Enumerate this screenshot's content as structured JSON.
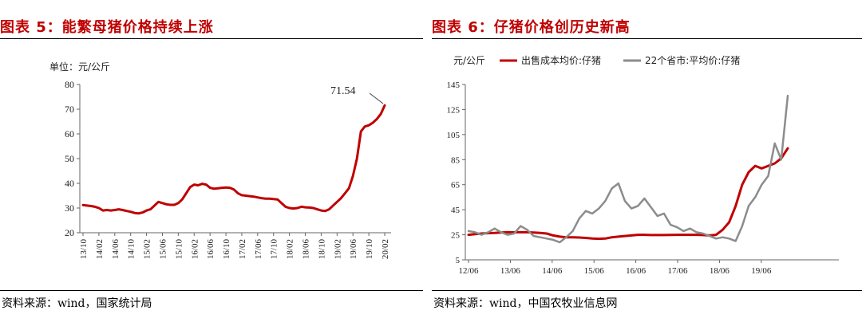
{
  "charts": {
    "left": {
      "figure_title": "图表 5：能繁母猪价格持续上涨",
      "source": "资料来源：wind，国家统计局",
      "unit": "单位：元/公斤",
      "annotation": "71.54",
      "line_color": "#c00000"
    },
    "right": {
      "figure_title": "图表 6：仔猪价格创历史新高",
      "source": "资料来源：wind，中国农牧业信息网",
      "unit": "元/公斤",
      "colors": [
        "#c00000",
        "#8c8c8c"
      ]
    }
  },
  "chart_data": [
    {
      "type": "line",
      "title": "图表 5：能繁母猪价格持续上涨",
      "ylabel": "单位：元/公斤",
      "ylim": [
        20,
        80
      ],
      "yticks": [
        20,
        30,
        40,
        50,
        60,
        70,
        80
      ],
      "xlabels": [
        "13/10",
        "14/02",
        "14/06",
        "14/10",
        "15/02",
        "15/06",
        "15/10",
        "16/02",
        "16/06",
        "16/10",
        "17/02",
        "17/06",
        "17/10",
        "18/02",
        "18/06",
        "18/10",
        "19/02",
        "19/06",
        "19/10",
        "20/02"
      ],
      "grid": false,
      "series": [
        {
          "values": [
            31.2,
            31,
            30.8,
            30.5,
            30,
            29,
            29.2,
            29,
            29.2,
            29.5,
            29.2,
            28.8,
            28.5,
            28,
            27.8,
            28.2,
            29,
            29.5,
            31,
            32.5,
            32,
            31.5,
            31.3,
            31.3,
            32,
            33.5,
            36,
            38.5,
            39.5,
            39.2,
            39.8,
            39.5,
            38.2,
            37.8,
            38,
            38.2,
            38.3,
            38.2,
            37.5,
            36,
            35.2,
            35,
            34.8,
            34.6,
            34.3,
            34,
            33.8,
            33.8,
            33.6,
            33.5,
            32,
            30.5,
            30,
            29.8,
            30,
            30.5,
            30.3,
            30.2,
            30,
            29.5,
            29,
            28.8,
            29.5,
            31,
            32.5,
            34,
            36,
            38,
            43,
            50,
            61,
            63,
            63.5,
            64.5,
            66,
            68,
            71.54
          ]
        }
      ],
      "annotations": [
        {
          "text": "71.54"
        }
      ]
    },
    {
      "type": "line",
      "title": "图表 6：仔猪价格创历史新高",
      "ylabel": "元/公斤",
      "ylim": [
        5,
        145
      ],
      "yticks": [
        5,
        25,
        45,
        65,
        85,
        105,
        125,
        145
      ],
      "xlabels": [
        "12/06",
        "13/06",
        "14/06",
        "15/06",
        "16/06",
        "17/06",
        "18/06",
        "19/06"
      ],
      "grid": false,
      "legend": "top",
      "series": [
        {
          "name": "出售成本均价:仔猪",
          "values": [
            25,
            25.5,
            26,
            26.3,
            26.5,
            26.8,
            27,
            27,
            27,
            27,
            26.8,
            26.5,
            26,
            24.5,
            23.5,
            23,
            23,
            22.8,
            22.5,
            22,
            21.8,
            22,
            23,
            23.5,
            24,
            24.5,
            25,
            25,
            24.8,
            24.8,
            24.8,
            24.9,
            25,
            25,
            25,
            25,
            24.8,
            24.5,
            25,
            29,
            35,
            48,
            65,
            75,
            80,
            78,
            80,
            82,
            86,
            94
          ]
        },
        {
          "name": "22个省市:平均价:仔猪",
          "values": [
            28,
            27,
            25,
            27,
            30,
            27,
            25,
            26,
            32,
            29,
            24,
            23,
            22,
            21,
            19,
            23,
            28,
            38,
            44,
            42,
            46,
            52,
            62,
            66,
            52,
            46,
            48,
            54,
            47,
            40,
            42,
            33,
            31,
            28,
            30,
            27,
            26,
            24,
            22,
            23,
            22,
            20,
            32,
            48,
            55,
            65,
            72,
            98,
            85,
            136
          ]
        }
      ]
    }
  ]
}
